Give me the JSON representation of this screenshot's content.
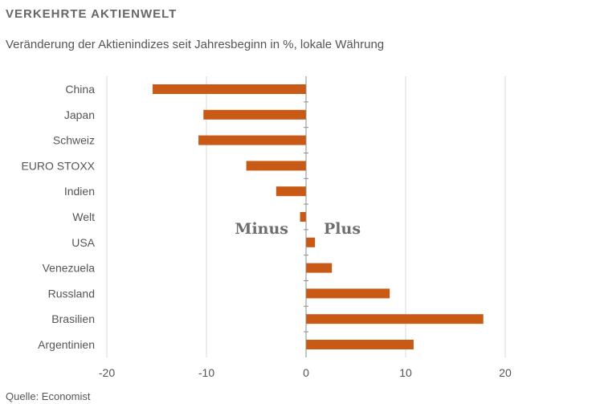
{
  "header": {
    "title": "VERKEHRTE AKTIENWELT",
    "subtitle": "Veränderung der Aktienindizes seit Jahresbeginn in %, lokale Währung"
  },
  "footer": {
    "source": "Quelle: Economist"
  },
  "colors": {
    "bar": "#c85a15",
    "grid": "#d9d9d9",
    "axis": "#8c8c8c"
  },
  "chart_data": {
    "type": "bar",
    "orientation": "horizontal",
    "title": "VERKEHRTE AKTIENWELT",
    "subtitle": "Veränderung der Aktienindizes seit Jahresbeginn in %, lokale Währung",
    "categories": [
      "China",
      "Japan",
      "Schweiz",
      "EURO STOXX",
      "Indien",
      "Welt",
      "USA",
      "Venezuela",
      "Russland",
      "Brasilien",
      "Argentinien"
    ],
    "values": [
      -15.4,
      -10.3,
      -10.8,
      -6.0,
      -3.0,
      -0.6,
      0.9,
      2.6,
      8.4,
      17.8,
      10.8
    ],
    "xlim": [
      -20,
      25
    ],
    "xticks": [
      -20,
      -10,
      0,
      10,
      20
    ],
    "xtick_labels": [
      "-20",
      "-10",
      "0",
      "10",
      "20"
    ],
    "annotations": [
      {
        "text": "Minus",
        "side": "negative"
      },
      {
        "text": "Plus",
        "side": "positive"
      }
    ],
    "grid": true
  }
}
